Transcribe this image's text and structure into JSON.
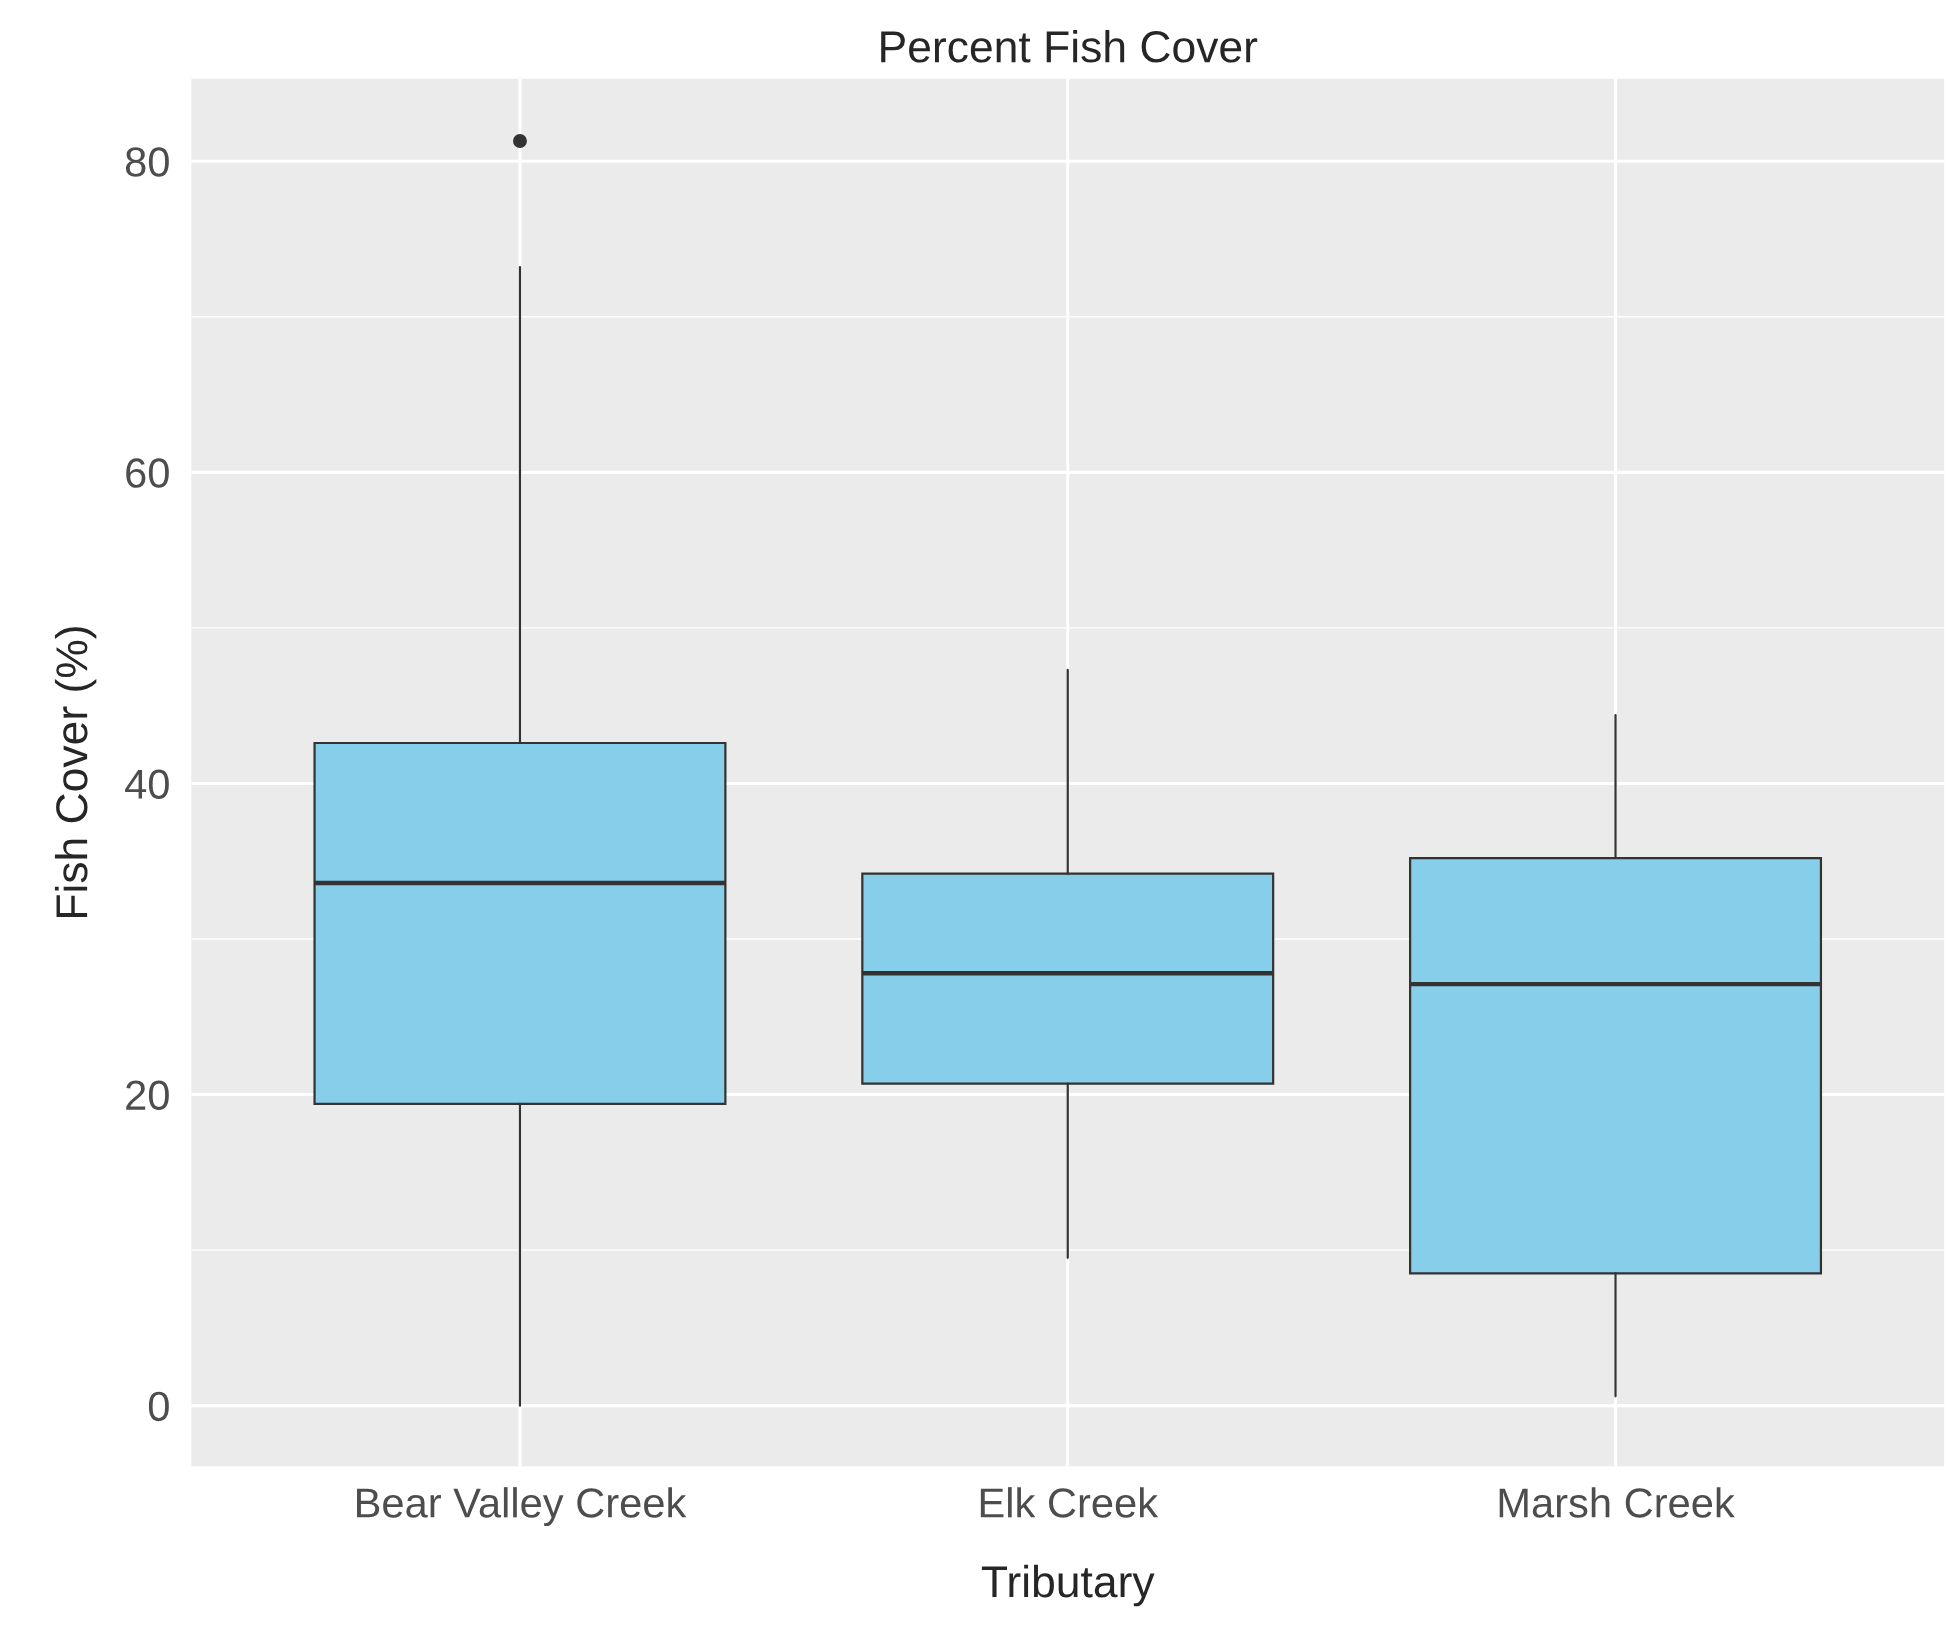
{
  "chart_data": {
    "type": "box",
    "title": "Percent Fish Cover",
    "xlabel": "Tributary",
    "ylabel": "Fish Cover (%)",
    "categories": [
      "Bear Valley Creek",
      "Elk Creek",
      "Marsh Creek"
    ],
    "boxes": [
      {
        "low": 0,
        "q1": 19.4,
        "median": 33.6,
        "q3": 42.6,
        "high": 73.2,
        "outliers": [
          81.3
        ]
      },
      {
        "low": 9.5,
        "q1": 20.7,
        "median": 27.8,
        "q3": 34.2,
        "high": 47.3
      },
      {
        "low": 0.6,
        "q1": 8.5,
        "median": 27.1,
        "q3": 35.2,
        "high": 44.4
      }
    ],
    "color": "#87ceeb",
    "ylim": [
      -3.9,
      85.3
    ],
    "yticks": [
      0,
      20,
      40,
      60,
      80
    ],
    "grid": true
  }
}
